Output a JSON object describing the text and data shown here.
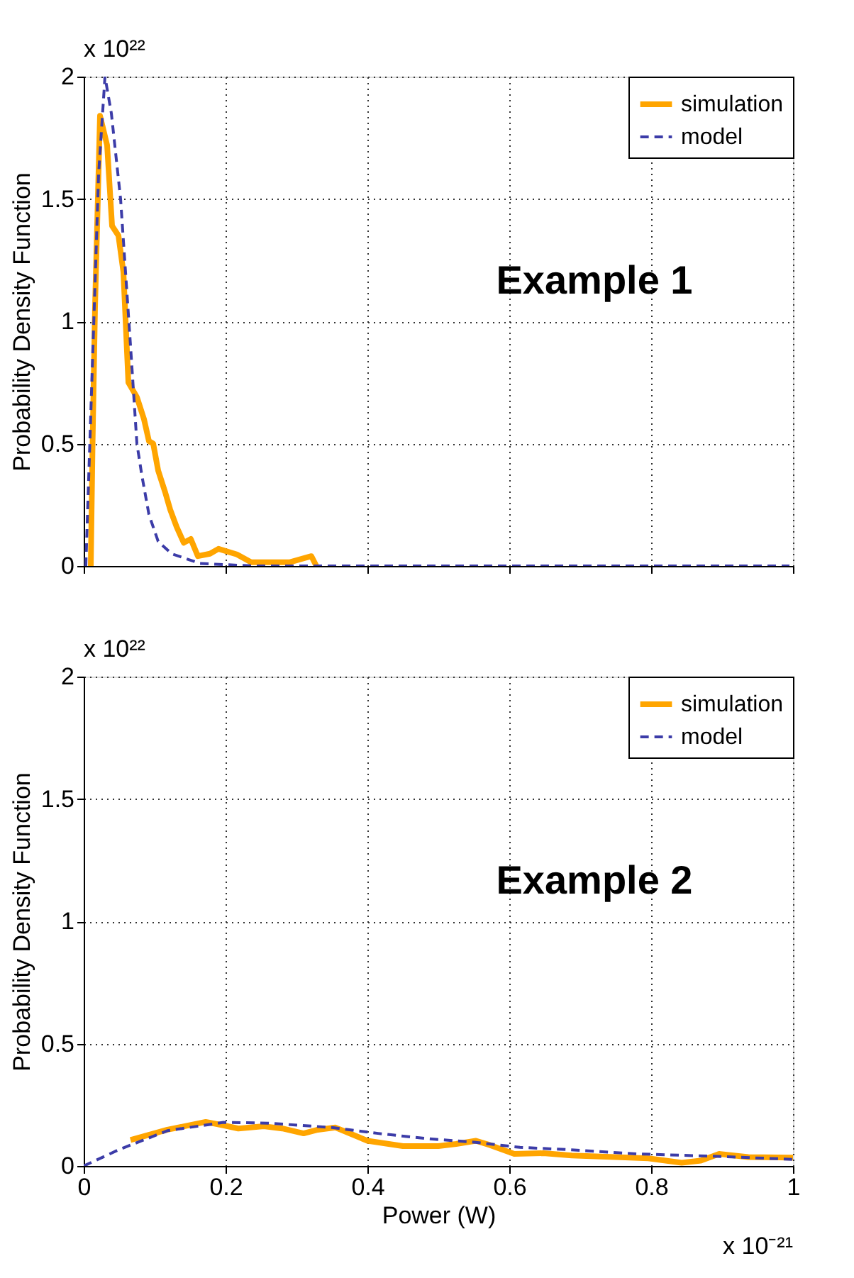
{
  "chart_data": [
    {
      "type": "line",
      "ylabel": "Probability Density Function",
      "xlim": [
        0,
        1
      ],
      "ylim": [
        0,
        2
      ],
      "xticks": [
        0,
        0.2,
        0.4,
        0.6,
        0.8,
        1
      ],
      "yticks": [
        0,
        0.5,
        1,
        1.5,
        2
      ],
      "tick_labels": "y",
      "grid": true,
      "legend": "top right",
      "annotations": [
        "Example 1",
        "x 10²²"
      ],
      "series": [
        {
          "name": "simulation",
          "color": "#ffa500",
          "line_style": "solid",
          "x": [
            0.01,
            0.0125,
            0.016,
            0.023,
            0.033,
            0.04,
            0.049,
            0.056,
            0.063,
            0.075,
            0.085,
            0.092,
            0.098,
            0.105,
            0.115,
            0.122,
            0.131,
            0.141,
            0.151,
            0.161,
            0.178,
            0.19,
            0.216,
            0.236,
            0.29,
            0.321,
            0.328
          ],
          "values": [
            0,
            0.5,
            1.06,
            1.84,
            1.72,
            1.39,
            1.35,
            1.2,
            0.75,
            0.69,
            0.6,
            0.51,
            0.5,
            0.39,
            0.3,
            0.23,
            0.16,
            0.095,
            0.11,
            0.04,
            0.05,
            0.07,
            0.047,
            0.015,
            0.015,
            0.04,
            0
          ]
        },
        {
          "name": "model",
          "color": "#3c3ca8",
          "line_style": "dashed",
          "x": [
            0.003,
            0.012,
            0.021,
            0.03,
            0.039,
            0.052,
            0.066,
            0.075,
            0.082,
            0.092,
            0.105,
            0.124,
            0.164,
            0.24,
            0.48,
            0.995
          ],
          "values": [
            0,
            0.8,
            1.6,
            2.0,
            1.85,
            1.5,
            0.9,
            0.5,
            0.37,
            0.21,
            0.1,
            0.05,
            0.01,
            0,
            0,
            0
          ]
        }
      ]
    },
    {
      "type": "line",
      "xlabel": "Power (W)",
      "ylabel": "Probability Density Function",
      "xlim": [
        0,
        1
      ],
      "ylim": [
        0,
        2
      ],
      "xticks": [
        0,
        0.2,
        0.4,
        0.6,
        0.8,
        1
      ],
      "yticks": [
        0,
        0.5,
        1,
        1.5,
        2
      ],
      "grid": true,
      "legend": "top right",
      "annotations": [
        "Example 2",
        "x 10²²",
        "x 10⁻²¹"
      ],
      "series": [
        {
          "name": "simulation",
          "color": "#ffa500",
          "line_style": "solid",
          "x": [
            0.066,
            0.118,
            0.172,
            0.197,
            0.218,
            0.254,
            0.28,
            0.31,
            0.33,
            0.355,
            0.4,
            0.45,
            0.5,
            0.525,
            0.553,
            0.573,
            0.607,
            0.648,
            0.688,
            0.75,
            0.796,
            0.843,
            0.87,
            0.896,
            0.937,
            1.0
          ],
          "values": [
            0.106,
            0.148,
            0.18,
            0.166,
            0.153,
            0.162,
            0.153,
            0.133,
            0.148,
            0.157,
            0.103,
            0.081,
            0.081,
            0.09,
            0.103,
            0.085,
            0.049,
            0.052,
            0.043,
            0.036,
            0.031,
            0.013,
            0.022,
            0.049,
            0.036,
            0.034
          ]
        },
        {
          "name": "model",
          "color": "#3c3ca8",
          "line_style": "dashed",
          "x": [
            0.0,
            0.05,
            0.118,
            0.197,
            0.26,
            0.35,
            0.415,
            0.483,
            0.55,
            0.615,
            0.68,
            0.782,
            0.884,
            1.0
          ],
          "values": [
            0,
            0.067,
            0.144,
            0.178,
            0.175,
            0.157,
            0.133,
            0.112,
            0.097,
            0.076,
            0.067,
            0.049,
            0.04,
            0.027
          ]
        }
      ]
    }
  ]
}
